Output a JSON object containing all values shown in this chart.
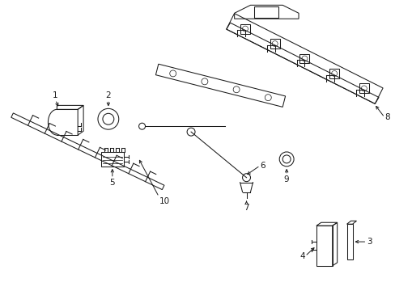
{
  "bg_color": "#ffffff",
  "line_color": "#1a1a1a",
  "fig_width": 4.89,
  "fig_height": 3.6,
  "dpi": 100,
  "lw": 0.75,
  "label_fs": 7.5
}
